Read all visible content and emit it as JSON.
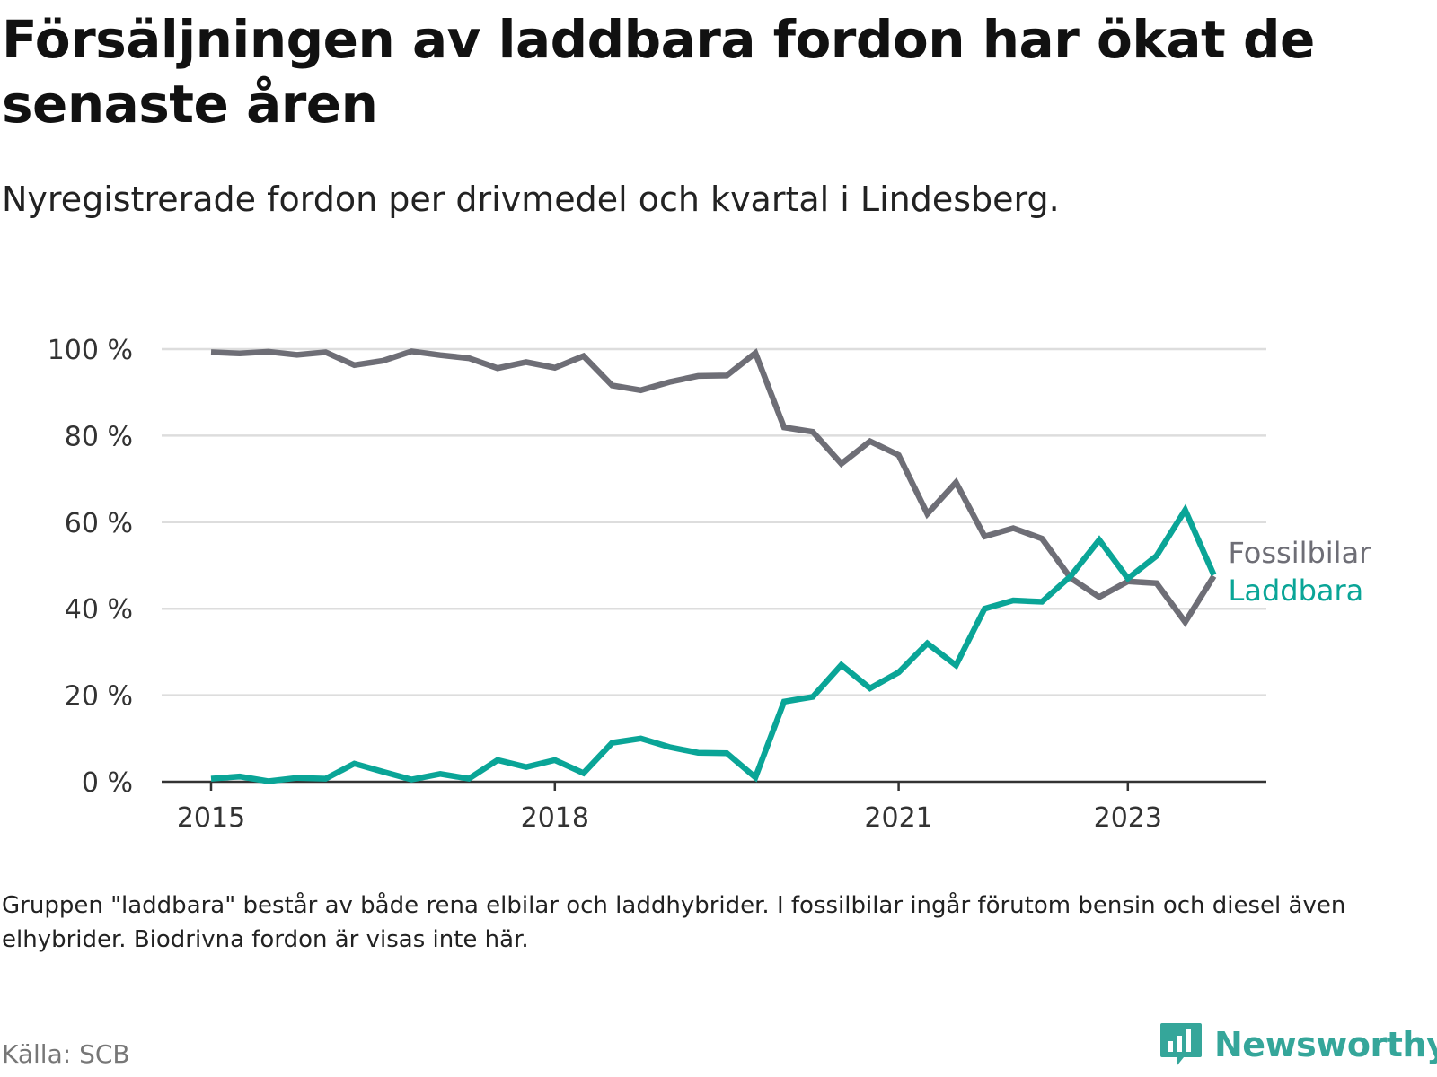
{
  "header": {
    "title": "Försäljningen av laddbara fordon har ökat de senaste åren",
    "subtitle": "Nyregistrerade fordon per drivmedel och kvartal i Lindesberg."
  },
  "footer": {
    "note": "Gruppen \"laddbara\" består av både rena elbilar och laddhybrider. I fossilbilar ingår förutom bensin och diesel även elhybrider. Biodrivna fordon är visas inte här.",
    "source": "Källa: SCB",
    "brand": "Newsworthy"
  },
  "colors": {
    "fossil": "#6e6e76",
    "laddbara": "#0aa597",
    "grid": "#dddddd",
    "axis": "#333333",
    "brand": "#35a69a"
  },
  "chart_data": {
    "type": "line",
    "title": "Försäljningen av laddbara fordon har ökat de senaste åren",
    "xlabel": "",
    "ylabel": "",
    "ylim": [
      0,
      100
    ],
    "y_ticks": [
      0,
      20,
      40,
      60,
      80,
      100
    ],
    "y_tick_labels": [
      "0 %",
      "20 %",
      "40 %",
      "60 %",
      "80 %",
      "100 %"
    ],
    "x_ticks": [
      2015,
      2018,
      2021,
      2023
    ],
    "x_tick_labels": [
      "2015",
      "2018",
      "2021",
      "2023"
    ],
    "x": [
      "2015Q1",
      "2015Q2",
      "2015Q3",
      "2015Q4",
      "2016Q1",
      "2016Q2",
      "2016Q3",
      "2016Q4",
      "2017Q1",
      "2017Q2",
      "2017Q3",
      "2017Q4",
      "2018Q1",
      "2018Q2",
      "2018Q3",
      "2018Q4",
      "2019Q1",
      "2019Q2",
      "2019Q3",
      "2019Q4",
      "2020Q1",
      "2020Q2",
      "2020Q3",
      "2020Q4",
      "2021Q1",
      "2021Q2",
      "2021Q3",
      "2021Q4",
      "2022Q1",
      "2022Q2",
      "2022Q3",
      "2022Q4",
      "2023Q1",
      "2023Q2",
      "2023Q3",
      "2023Q4"
    ],
    "series": [
      {
        "name": "Fossilbilar",
        "values": [
          99.3,
          99.0,
          99.4,
          98.7,
          99.3,
          96.3,
          97.3,
          99.5,
          98.6,
          97.9,
          95.6,
          97.0,
          95.7,
          98.4,
          91.6,
          90.5,
          92.4,
          93.8,
          93.9,
          99.1,
          81.9,
          80.9,
          73.5,
          78.7,
          75.5,
          61.9,
          69.2,
          56.7,
          58.6,
          56.2,
          47.1,
          42.7,
          46.3,
          45.9,
          36.9,
          47.5
        ]
      },
      {
        "name": "Laddbara",
        "values": [
          0.7,
          1.2,
          0.1,
          0.9,
          0.7,
          4.2,
          2.3,
          0.5,
          1.8,
          0.7,
          5.0,
          3.4,
          5.0,
          2.0,
          9.0,
          10.0,
          8.0,
          6.7,
          6.6,
          1.0,
          18.5,
          19.6,
          27.0,
          21.6,
          25.3,
          32.0,
          26.9,
          40.0,
          41.9,
          41.6,
          47.5,
          55.9,
          47.0,
          52.2,
          62.8,
          47.8
        ]
      }
    ],
    "legend": "direct labels at line ends"
  }
}
